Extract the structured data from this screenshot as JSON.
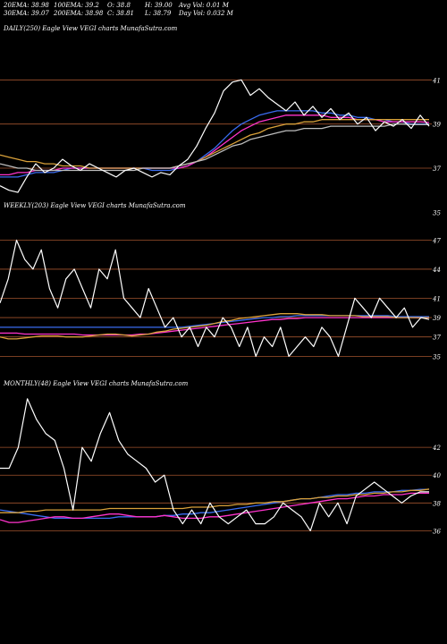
{
  "header": {
    "ema20": "20EMA: 38.98",
    "ema100": "100EMA: 39.2",
    "open": "O: 38.8",
    "high": "H: 39.00",
    "avg_vol": "Avg Vol: 0.01  M",
    "ema30": "30EMA: 39.07",
    "ema200": "200EMA: 38.98",
    "close": "C: 38.81",
    "low": "L: 38.79",
    "day_vol": "Day Vol: 0.032  M"
  },
  "colors": {
    "background": "#000000",
    "guide_line": "#a0522d",
    "price": "#ffffff",
    "ema_blue": "#3a6cf0",
    "ema_magenta": "#ff33cc",
    "ema_orange": "#d9a13a",
    "ema_grey": "#bdbdbd"
  },
  "chart_data": [
    {
      "type": "line",
      "title": "DAILY(250) Eagle  View  VEGI charts MunafaSutra.com",
      "ylim": [
        34,
        43
      ],
      "y_ticks": [
        "41",
        "39",
        "37",
        "35"
      ],
      "guide_levels": [
        41,
        39,
        37
      ],
      "series": [
        {
          "values": [
            36.2,
            36.0,
            35.9,
            36.6,
            37.2,
            36.8,
            37.0,
            37.4,
            37.1,
            36.9,
            37.2,
            37.0,
            36.8,
            36.6,
            36.9,
            37.0,
            36.8,
            36.6,
            36.8,
            36.7,
            37.1,
            37.4,
            38.0,
            38.8,
            39.5,
            40.5,
            40.9,
            41.0,
            40.3,
            40.6,
            40.2,
            39.9,
            39.6,
            40.0,
            39.4,
            39.8,
            39.3,
            39.7,
            39.2,
            39.5,
            39.0,
            39.3,
            38.7,
            39.1,
            38.9,
            39.2,
            38.8,
            39.4,
            38.9
          ]
        },
        {
          "values": [
            36.6,
            36.6,
            36.6,
            36.7,
            36.8,
            36.8,
            36.8,
            36.9,
            37.0,
            37.0,
            37.0,
            37.0,
            37.0,
            37.0,
            37.0,
            37.0,
            37.0,
            36.9,
            36.9,
            36.9,
            37.0,
            37.1,
            37.3,
            37.6,
            37.9,
            38.3,
            38.7,
            39.0,
            39.2,
            39.4,
            39.5,
            39.6,
            39.6,
            39.6,
            39.6,
            39.6,
            39.5,
            39.5,
            39.4,
            39.4,
            39.3,
            39.3,
            39.2,
            39.2,
            39.1,
            39.1,
            39.0,
            39.0,
            39.0
          ]
        },
        {
          "values": [
            36.7,
            36.7,
            36.8,
            36.8,
            36.9,
            36.9,
            36.9,
            37.0,
            37.0,
            37.0,
            37.0,
            37.0,
            37.0,
            37.0,
            37.0,
            37.0,
            37.0,
            37.0,
            37.0,
            37.0,
            37.0,
            37.1,
            37.3,
            37.5,
            37.8,
            38.1,
            38.4,
            38.7,
            38.9,
            39.1,
            39.2,
            39.3,
            39.4,
            39.4,
            39.4,
            39.4,
            39.4,
            39.3,
            39.3,
            39.3,
            39.2,
            39.2,
            39.2,
            39.1,
            39.1,
            39.1,
            39.1,
            39.1,
            39.07
          ]
        },
        {
          "values": [
            37.6,
            37.5,
            37.4,
            37.3,
            37.3,
            37.2,
            37.2,
            37.1,
            37.1,
            37.1,
            37.0,
            37.0,
            37.0,
            37.0,
            37.0,
            37.0,
            37.0,
            37.0,
            37.0,
            37.0,
            37.1,
            37.2,
            37.3,
            37.5,
            37.7,
            37.9,
            38.1,
            38.3,
            38.5,
            38.6,
            38.8,
            38.9,
            39.0,
            39.0,
            39.1,
            39.1,
            39.2,
            39.2,
            39.2,
            39.2,
            39.2,
            39.2,
            39.2,
            39.2,
            39.2,
            39.2,
            39.2,
            39.2,
            39.2
          ]
        },
        {
          "values": [
            37.2,
            37.1,
            37.0,
            37.0,
            36.9,
            36.9,
            36.9,
            36.9,
            36.9,
            36.9,
            36.9,
            36.9,
            36.9,
            36.9,
            36.9,
            36.9,
            37.0,
            37.0,
            37.0,
            37.0,
            37.1,
            37.2,
            37.3,
            37.4,
            37.6,
            37.8,
            38.0,
            38.1,
            38.3,
            38.4,
            38.5,
            38.6,
            38.7,
            38.7,
            38.8,
            38.8,
            38.8,
            38.9,
            38.9,
            38.9,
            38.9,
            38.9,
            38.9,
            38.9,
            39.0,
            39.0,
            38.98,
            38.98,
            38.98
          ]
        }
      ]
    },
    {
      "type": "line",
      "title": "WEEKLY(203) Eagle  View  VEGI charts MunafaSutra.com",
      "ylim": [
        33,
        50
      ],
      "y_ticks": [
        "47",
        "44",
        "41",
        "39",
        "37",
        "35"
      ],
      "guide_levels": [
        47,
        44,
        41,
        39,
        37,
        35
      ],
      "series": [
        {
          "values": [
            40.5,
            43,
            47,
            45,
            44,
            46,
            42,
            40,
            43,
            44,
            42,
            40,
            44,
            43,
            46,
            41,
            40,
            39,
            42,
            40,
            38,
            39,
            37,
            38,
            36,
            38,
            37,
            39,
            38,
            36,
            38,
            35,
            37,
            36,
            38,
            35,
            36,
            37,
            36,
            38,
            37,
            35,
            38,
            41,
            40,
            39,
            41,
            40,
            39,
            40,
            38,
            39,
            38.8
          ]
        },
        {
          "values": [
            38,
            38,
            38,
            38,
            38,
            38,
            38,
            38,
            38,
            38,
            38,
            38,
            38,
            38,
            38,
            38,
            38,
            38,
            38,
            38,
            38,
            38,
            38,
            38.1,
            38.2,
            38.3,
            38.4,
            38.5,
            38.6,
            38.7,
            38.8,
            38.9,
            39,
            39,
            39.1,
            39.1,
            39.2,
            39.2,
            39.2,
            39.2,
            39.2,
            39.2,
            39.2,
            39.2,
            39.2,
            39.2,
            39.2,
            39.2,
            39.1,
            39.1,
            39.1,
            39.1,
            39.1
          ]
        },
        {
          "values": [
            37.4,
            37.4,
            37.4,
            37.3,
            37.3,
            37.3,
            37.3,
            37.3,
            37.3,
            37.3,
            37.2,
            37.2,
            37.2,
            37.2,
            37.2,
            37.2,
            37.2,
            37.3,
            37.3,
            37.4,
            37.5,
            37.6,
            37.7,
            37.8,
            37.9,
            38.0,
            38.1,
            38.2,
            38.3,
            38.4,
            38.5,
            38.6,
            38.7,
            38.8,
            38.8,
            38.9,
            38.9,
            39.0,
            39.0,
            39.0,
            39.0,
            39.0,
            39.0,
            39.0,
            39.0,
            39.0,
            39.0,
            39.0,
            39.0,
            39.0,
            39.0,
            38.98,
            38.98
          ]
        },
        {
          "values": [
            37.0,
            36.8,
            36.8,
            36.9,
            37.0,
            37.1,
            37.1,
            37.1,
            37.0,
            37.0,
            37.0,
            37.1,
            37.2,
            37.3,
            37.3,
            37.2,
            37.1,
            37.2,
            37.3,
            37.5,
            37.6,
            37.8,
            37.9,
            38.0,
            38.1,
            38.2,
            38.4,
            38.6,
            38.7,
            38.9,
            39.0,
            39.1,
            39.2,
            39.3,
            39.4,
            39.4,
            39.4,
            39.3,
            39.3,
            39.3,
            39.2,
            39.2,
            39.2,
            39.2,
            39.1,
            39.1,
            39.1,
            39.1,
            39.0,
            39.0,
            39.0,
            39.0,
            39.0
          ]
        }
      ]
    },
    {
      "type": "line",
      "title": "MONTHLY(48) Eagle  View  VEGI charts MunafaSutra.com",
      "ylim": [
        33,
        46
      ],
      "y_ticks": [
        "42",
        "40",
        "38",
        "36"
      ],
      "guide_levels": [
        42,
        40,
        38,
        36
      ],
      "series": [
        {
          "values": [
            40.5,
            40.5,
            42,
            45.5,
            44,
            43,
            42.5,
            40.5,
            37.5,
            42,
            41,
            43,
            44.5,
            42.5,
            41.5,
            41,
            40.5,
            39.5,
            40,
            37.5,
            36.5,
            37.5,
            36.5,
            38,
            37,
            36.5,
            37,
            37.5,
            36.5,
            36.5,
            37,
            38,
            37.5,
            37,
            36,
            38,
            37,
            38,
            36.5,
            38.5,
            39,
            39.5,
            39,
            38.5,
            38,
            38.5,
            38.8,
            38.8
          ]
        },
        {
          "values": [
            37.5,
            37.4,
            37.3,
            37.2,
            37.1,
            37.0,
            36.9,
            36.9,
            36.9,
            36.9,
            36.9,
            36.9,
            36.9,
            37.0,
            37.0,
            37.0,
            37.0,
            37.0,
            37.1,
            37.1,
            37.2,
            37.2,
            37.3,
            37.3,
            37.4,
            37.5,
            37.6,
            37.7,
            37.8,
            37.9,
            38.0,
            38.1,
            38.2,
            38.3,
            38.3,
            38.4,
            38.5,
            38.6,
            38.6,
            38.7,
            38.7,
            38.8,
            38.8,
            38.8,
            38.9,
            38.9,
            38.98,
            38.98
          ]
        },
        {
          "values": [
            36.8,
            36.6,
            36.6,
            36.7,
            36.8,
            36.9,
            37.0,
            37.0,
            36.9,
            36.9,
            37.0,
            37.1,
            37.2,
            37.2,
            37.1,
            37.0,
            37.0,
            37.0,
            37.1,
            37.0,
            36.9,
            36.9,
            36.9,
            37.0,
            37.0,
            37.1,
            37.2,
            37.3,
            37.4,
            37.5,
            37.6,
            37.7,
            37.8,
            37.9,
            38.0,
            38.1,
            38.2,
            38.3,
            38.3,
            38.4,
            38.5,
            38.5,
            38.6,
            38.6,
            38.6,
            38.7,
            38.7,
            38.7
          ]
        },
        {
          "values": [
            37.3,
            37.3,
            37.3,
            37.4,
            37.4,
            37.5,
            37.5,
            37.5,
            37.5,
            37.5,
            37.5,
            37.5,
            37.6,
            37.6,
            37.6,
            37.6,
            37.6,
            37.6,
            37.6,
            37.6,
            37.6,
            37.7,
            37.7,
            37.7,
            37.8,
            37.8,
            37.9,
            37.9,
            38.0,
            38.0,
            38.1,
            38.1,
            38.2,
            38.3,
            38.3,
            38.4,
            38.4,
            38.5,
            38.5,
            38.6,
            38.6,
            38.7,
            38.7,
            38.8,
            38.8,
            38.9,
            38.9,
            39.0
          ]
        }
      ]
    }
  ]
}
